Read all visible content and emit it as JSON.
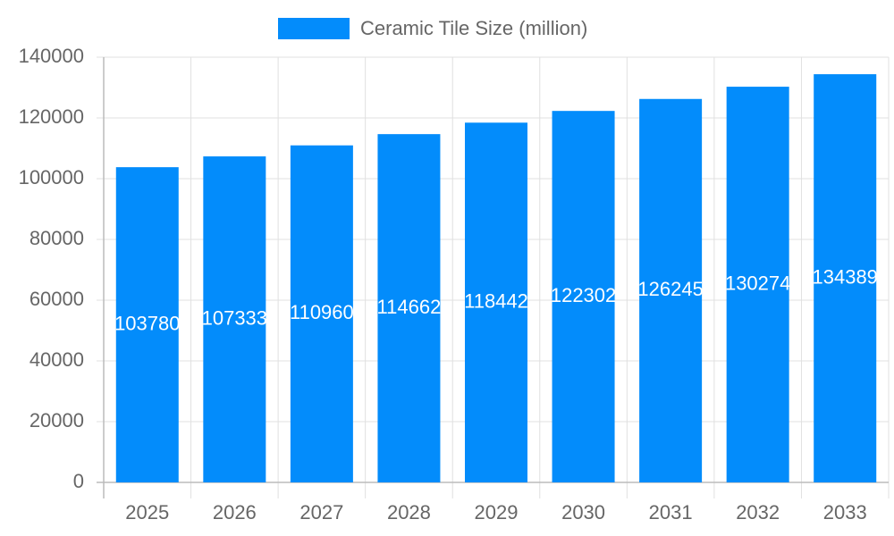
{
  "chart_data": {
    "type": "bar",
    "categories": [
      "2025",
      "2026",
      "2027",
      "2028",
      "2029",
      "2030",
      "2031",
      "2032",
      "2033"
    ],
    "series": [
      {
        "name": "Ceramic Tile Size (million)",
        "color": "#038cfb",
        "values": [
          103780,
          107333,
          110960,
          114662,
          118442,
          122302,
          126245,
          130274,
          134389
        ]
      }
    ],
    "ylim": [
      0,
      140000
    ],
    "yticks": [
      0,
      20000,
      40000,
      60000,
      80000,
      100000,
      120000,
      140000
    ],
    "grid": true,
    "legend": "top"
  }
}
